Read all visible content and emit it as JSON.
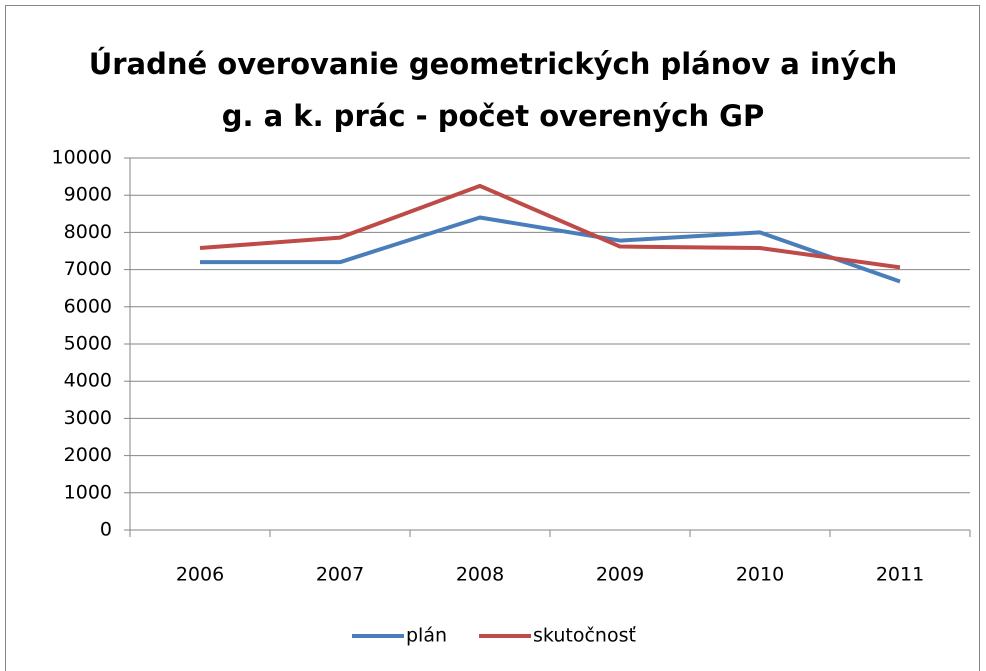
{
  "chart_data": {
    "type": "line",
    "title": "Úradné overovanie geometrických plánov a iných\ng. a k. prác - počet overených GP",
    "categories": [
      "2006",
      "2007",
      "2008",
      "2009",
      "2010",
      "2011"
    ],
    "series": [
      {
        "name": "plán",
        "color": "#4a7ebb",
        "values": [
          7200,
          7200,
          8400,
          7780,
          8000,
          6680
        ]
      },
      {
        "name": "skutočnosť",
        "color": "#be4b48",
        "values": [
          7580,
          7860,
          9250,
          7620,
          7580,
          7060
        ]
      }
    ],
    "ylim": [
      0,
      10000
    ],
    "yticks": [
      0,
      1000,
      2000,
      3000,
      4000,
      5000,
      6000,
      7000,
      8000,
      9000,
      10000
    ],
    "grid": true,
    "legend": "bottom"
  }
}
